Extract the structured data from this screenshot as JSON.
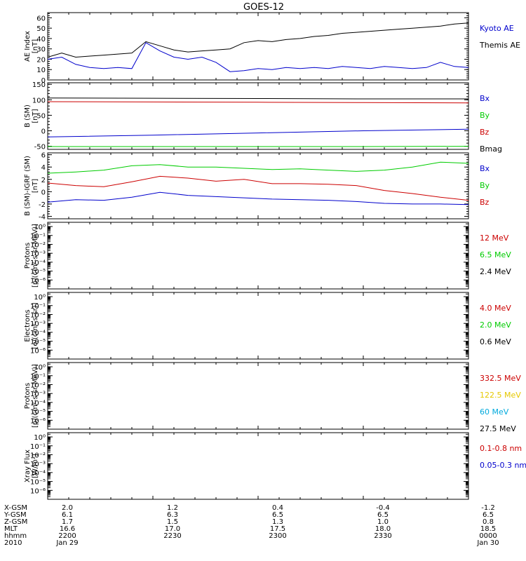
{
  "title": "GOES-12",
  "colors": {
    "black": "#000000",
    "blue": "#0000cc",
    "red": "#cc0000",
    "green": "#00cc00",
    "yellow": "#e6c800",
    "cyan": "#00aadd"
  },
  "x_ticks": [
    "2200",
    "2230",
    "2300",
    "2330",
    "0000"
  ],
  "chart_data": [
    {
      "type": "line",
      "id": "ae",
      "ylabel": [
        "AE Index",
        "[nT]"
      ],
      "ylim": [
        0,
        65
      ],
      "yticks": [
        0,
        10,
        20,
        30,
        40,
        50,
        60
      ],
      "x": [
        0,
        4,
        8,
        12,
        16,
        20,
        24,
        28,
        32,
        36,
        40,
        44,
        48,
        52,
        56,
        60,
        64,
        68,
        72,
        76,
        80,
        84,
        88,
        92,
        96,
        100,
        104,
        108,
        112,
        116,
        120
      ],
      "series": [
        {
          "name": "Kyoto AE",
          "color": "blue",
          "values": [
            20,
            22,
            15,
            12,
            11,
            12,
            11,
            36,
            28,
            22,
            20,
            22,
            17,
            8,
            9,
            11,
            10,
            12,
            11,
            12,
            11,
            13,
            12,
            11,
            13,
            12,
            11,
            12,
            17,
            13,
            12
          ]
        },
        {
          "name": "Themis AE",
          "color": "black",
          "values": [
            22,
            26,
            22,
            23,
            24,
            25,
            26,
            37,
            33,
            29,
            27,
            28,
            29,
            30,
            36,
            38,
            37,
            39,
            40,
            42,
            43,
            45,
            46,
            47,
            48,
            49,
            50,
            51,
            52,
            54,
            55
          ]
        }
      ]
    },
    {
      "type": "line",
      "id": "bsm",
      "ylabel": [
        "B (SM)",
        "[nT]"
      ],
      "ylim": [
        -60,
        155
      ],
      "yticks": [
        -50,
        0,
        50,
        100,
        150
      ],
      "x": [
        0,
        30,
        60,
        90,
        120
      ],
      "series": [
        {
          "name": "Bx",
          "color": "blue",
          "values": [
            -20,
            -14,
            -7,
            0,
            5
          ]
        },
        {
          "name": "By",
          "color": "green",
          "values": [
            -51,
            -51,
            -51,
            -51,
            -50
          ]
        },
        {
          "name": "Bz",
          "color": "red",
          "values": [
            94,
            93,
            92,
            91,
            90
          ]
        },
        {
          "name": "Bmag",
          "color": "black",
          "values": [
            106,
            105,
            104,
            103,
            103
          ]
        }
      ]
    },
    {
      "type": "line",
      "id": "bigrf",
      "ylabel": [
        "B (SM)-IGRF (SM)",
        "[nT]"
      ],
      "ylim": [
        -4.4,
        6.3
      ],
      "yticks": [
        -4,
        -2,
        0,
        2,
        4,
        6
      ],
      "x": [
        0,
        8,
        16,
        24,
        32,
        40,
        48,
        56,
        64,
        72,
        80,
        88,
        96,
        104,
        112,
        120
      ],
      "series": [
        {
          "name": "Bx",
          "color": "blue",
          "values": [
            -1.7,
            -1.3,
            -1.4,
            -0.9,
            -0.1,
            -0.6,
            -0.8,
            -1.0,
            -1.2,
            -1.3,
            -1.4,
            -1.6,
            -1.9,
            -2.0,
            -2.0,
            -2.1
          ]
        },
        {
          "name": "By",
          "color": "green",
          "values": [
            3.0,
            3.2,
            3.5,
            4.2,
            4.4,
            4.0,
            4.0,
            3.8,
            3.6,
            3.7,
            3.5,
            3.3,
            3.5,
            4.0,
            4.8,
            4.6
          ]
        },
        {
          "name": "Bz",
          "color": "red",
          "values": [
            1.4,
            1.0,
            0.8,
            1.6,
            2.5,
            2.2,
            1.7,
            2.0,
            1.3,
            1.3,
            1.2,
            1.0,
            0.2,
            -0.3,
            -0.9,
            -1.4
          ]
        }
      ]
    },
    {
      "type": "line",
      "id": "protons1",
      "ylabel": [
        "Protons",
        "[p/(cm²-s-sr-MeV)]"
      ],
      "log": true,
      "ylim": [
        1e-07,
        3
      ],
      "ytick_labels": [
        "10⁻⁶",
        "10⁻⁵",
        "10⁻⁴",
        "10⁻³",
        "10⁻²",
        "10⁻¹",
        "10⁰"
      ],
      "ytick_exp": [
        -6,
        -5,
        -4,
        -3,
        -2,
        -1,
        0
      ],
      "series": [
        {
          "name": "12 MeV",
          "color": "red",
          "values": []
        },
        {
          "name": "6.5 MeV",
          "color": "green",
          "values": []
        },
        {
          "name": "2.4 MeV",
          "color": "black",
          "values": []
        }
      ]
    },
    {
      "type": "line",
      "id": "electrons",
      "ylabel": [
        "Electrons",
        "[e/(cm²-s-sr)]"
      ],
      "log": true,
      "ylim": [
        1e-07,
        3
      ],
      "ytick_labels": [
        "10⁻⁶",
        "10⁻⁵",
        "10⁻⁴",
        "10⁻³",
        "10⁻²",
        "10⁻¹",
        "10⁰"
      ],
      "ytick_exp": [
        -6,
        -5,
        -4,
        -3,
        -2,
        -1,
        0
      ],
      "series": [
        {
          "name": "4.0 MeV",
          "color": "red",
          "values": []
        },
        {
          "name": "2.0 MeV",
          "color": "green",
          "values": []
        },
        {
          "name": "0.6 MeV",
          "color": "black",
          "values": []
        }
      ]
    },
    {
      "type": "line",
      "id": "protons2",
      "ylabel": [
        "Protons",
        "[p/(cm²-s-sr-MeV)]"
      ],
      "log": true,
      "ylim": [
        1e-07,
        3
      ],
      "ytick_labels": [
        "10⁻⁶",
        "10⁻⁵",
        "10⁻⁴",
        "10⁻³",
        "10⁻²",
        "10⁻¹",
        "10⁰"
      ],
      "ytick_exp": [
        -6,
        -5,
        -4,
        -3,
        -2,
        -1,
        0
      ],
      "series": [
        {
          "name": "332.5 MeV",
          "color": "red",
          "values": []
        },
        {
          "name": "122.5 MeV",
          "color": "yellow",
          "values": []
        },
        {
          "name": "60 MeV",
          "color": "cyan",
          "values": []
        },
        {
          "name": "27.5 MeV",
          "color": "black",
          "values": []
        }
      ]
    },
    {
      "type": "line",
      "id": "xray",
      "ylabel": [
        "Xray Flux",
        "[W/m²]"
      ],
      "log": true,
      "ylim": [
        1e-07,
        3
      ],
      "ytick_labels": [
        "10⁻⁶",
        "10⁻⁵",
        "10⁻⁴",
        "10⁻³",
        "10⁻²",
        "10⁻¹",
        "10⁰"
      ],
      "ytick_exp": [
        -6,
        -5,
        -4,
        -3,
        -2,
        -1,
        0
      ],
      "series": [
        {
          "name": "0.1-0.8 nm",
          "color": "red",
          "values": []
        },
        {
          "name": "0.05-0.3 nm",
          "color": "blue",
          "values": []
        }
      ]
    }
  ],
  "ephemeris": {
    "labels": [
      "X-GSM",
      "Y-GSM",
      "Z-GSM",
      "MLT",
      "hhmm",
      "2010"
    ],
    "columns": [
      [
        "2.0",
        "6.1",
        "1.7",
        "16.6",
        "2200",
        "Jan 29"
      ],
      [
        "1.2",
        "6.3",
        "1.5",
        "17.0",
        "2230",
        ""
      ],
      [
        "0.4",
        "6.5",
        "1.3",
        "17.5",
        "2300",
        ""
      ],
      [
        "-0.4",
        "6.5",
        "1.0",
        "18.0",
        "2330",
        ""
      ],
      [
        "-1.2",
        "6.5",
        "0.8",
        "18.5",
        "0000",
        "Jan 30"
      ]
    ]
  }
}
